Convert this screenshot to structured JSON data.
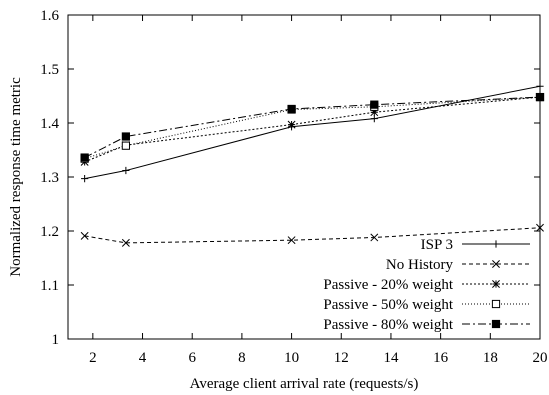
{
  "chart_data": {
    "type": "line",
    "title": "",
    "xlabel": "Average client arrival rate (requests/s)",
    "ylabel": "Normalized response time metric",
    "xlim": [
      1,
      20
    ],
    "ylim": [
      1,
      1.6
    ],
    "xticks": [
      2,
      4,
      6,
      8,
      10,
      12,
      14,
      16,
      18,
      20
    ],
    "yticks": [
      1,
      1.1,
      1.2,
      1.3,
      1.4,
      1.5,
      1.6
    ],
    "grid": false,
    "legend_position": "bottom-right",
    "series": [
      {
        "name": "ISP 3",
        "marker": "plus",
        "dash": "",
        "x": [
          1.67,
          3.33,
          10,
          13.33,
          20
        ],
        "y": [
          1.297,
          1.312,
          1.393,
          1.408,
          1.468
        ]
      },
      {
        "name": "No History",
        "marker": "cross",
        "dash": "4,3",
        "x": [
          1.67,
          3.33,
          10,
          13.33,
          20
        ],
        "y": [
          1.191,
          1.178,
          1.183,
          1.188,
          1.206
        ]
      },
      {
        "name": "Passive - 20% weight",
        "marker": "star",
        "dash": "2,2",
        "x": [
          1.67,
          3.33,
          10,
          13.33,
          20
        ],
        "y": [
          1.328,
          1.359,
          1.397,
          1.42,
          1.448
        ]
      },
      {
        "name": "Passive - 50% weight",
        "marker": "square-open",
        "dash": "1,2",
        "x": [
          1.67,
          3.33,
          10,
          13.33,
          20
        ],
        "y": [
          1.334,
          1.358,
          1.425,
          1.43,
          1.448
        ]
      },
      {
        "name": "Passive - 80% weight",
        "marker": "square-filled",
        "dash": "8,3,2,3",
        "x": [
          1.67,
          3.33,
          10,
          13.33,
          20
        ],
        "y": [
          1.336,
          1.375,
          1.426,
          1.434,
          1.448
        ]
      }
    ]
  }
}
